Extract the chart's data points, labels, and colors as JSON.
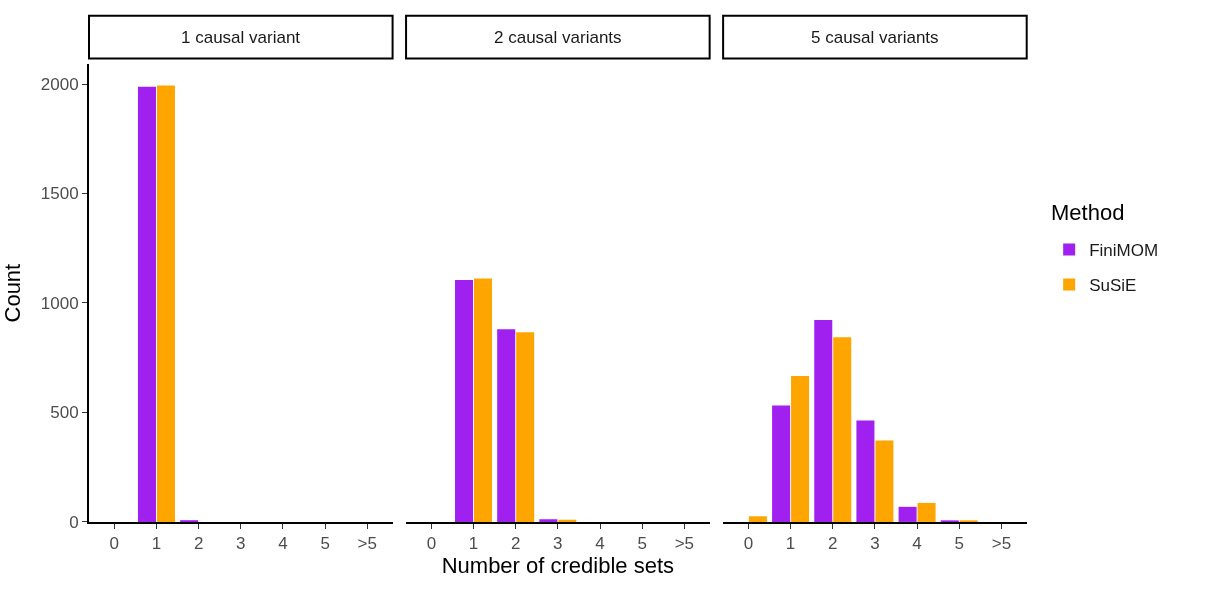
{
  "chart_data": [
    {
      "type": "bar",
      "title": "1 causal variant",
      "ylabel": "Count",
      "categories": [
        "0",
        "1",
        "2",
        "3",
        "4",
        "5",
        ">5"
      ],
      "ylim": [
        0,
        2090
      ],
      "yticks": [
        0,
        500,
        1000,
        1500,
        2000
      ],
      "legend_title": "Method",
      "legend": "right",
      "series": [
        {
          "name": "FiniMOM",
          "color": "#a020f0",
          "values": [
            0,
            1988,
            8,
            0,
            0,
            0,
            0
          ]
        },
        {
          "name": "SuSiE",
          "color": "#ffa500",
          "values": [
            0,
            1993,
            0,
            0,
            0,
            0,
            0
          ]
        }
      ]
    },
    {
      "type": "bar",
      "title": "2 causal variants",
      "xlabel": "Number of credible sets",
      "categories": [
        "0",
        "1",
        "2",
        "3",
        "4",
        "5",
        ">5"
      ],
      "yticks": [
        0,
        500,
        1000,
        1500,
        2000
      ],
      "tick_labels": "x",
      "series": [
        {
          "color": "#a020f0",
          "values": [
            0,
            1105,
            880,
            12,
            0,
            0,
            0
          ]
        },
        {
          "color": "#ffa500",
          "values": [
            0,
            1112,
            866,
            10,
            0,
            0,
            0
          ]
        }
      ]
    },
    {
      "type": "bar",
      "title": "5 causal variants",
      "categories": [
        "0",
        "1",
        "2",
        "3",
        "4",
        "5",
        ">5"
      ],
      "yticks": [
        0,
        500,
        1000,
        1500,
        2000
      ],
      "tick_labels": "x",
      "series": [
        {
          "color": "#a020f0",
          "values": [
            0,
            532,
            922,
            463,
            69,
            4,
            0
          ]
        },
        {
          "color": "#ffa500",
          "values": [
            26,
            667,
            844,
            372,
            87,
            3,
            0
          ]
        }
      ]
    }
  ]
}
